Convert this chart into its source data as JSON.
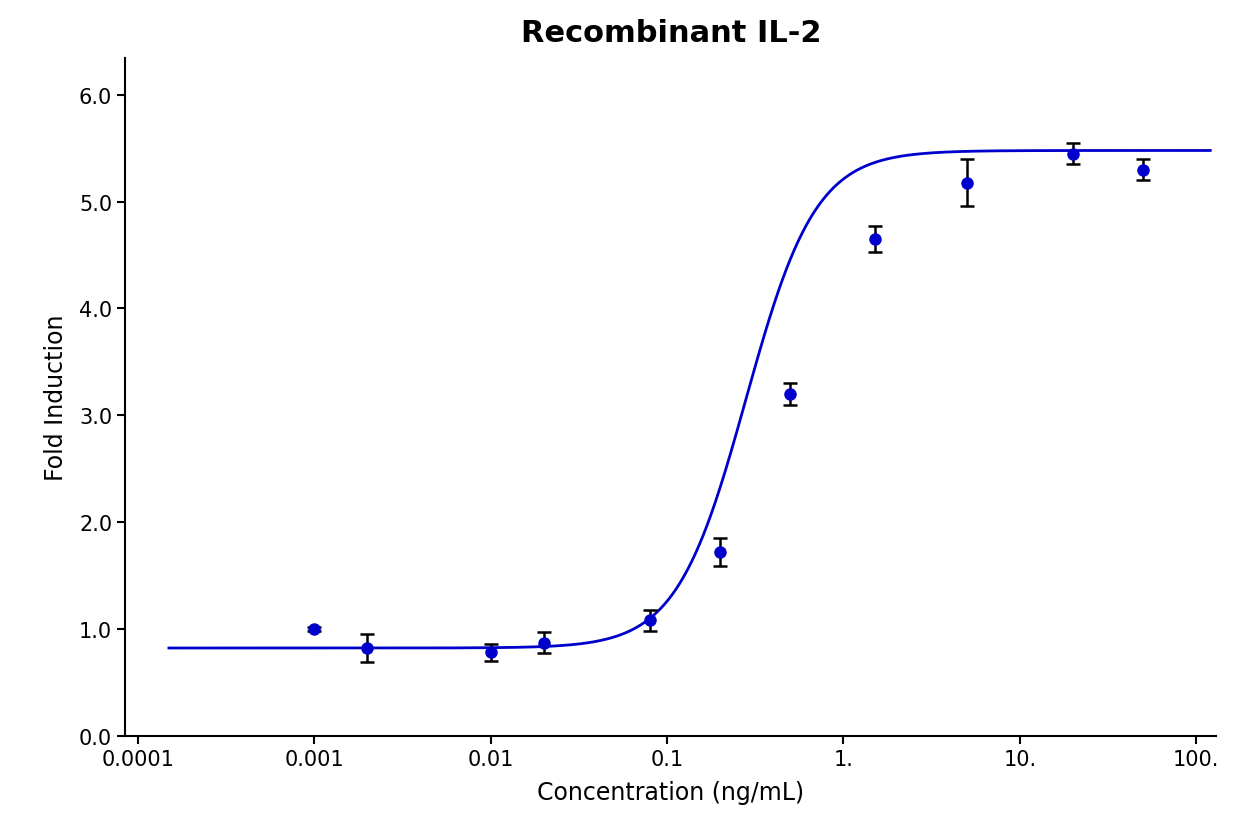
{
  "title": "Recombinant IL-2",
  "xlabel": "Concentration (ng/mL)",
  "ylabel": "Fold Induction",
  "x_data": [
    0.001,
    0.002,
    0.01,
    0.02,
    0.08,
    0.2,
    0.5,
    1.5,
    5.0,
    20.0,
    50.0
  ],
  "y_data": [
    1.0,
    0.82,
    0.78,
    0.87,
    1.08,
    1.72,
    3.2,
    4.65,
    5.18,
    5.45,
    5.3
  ],
  "y_err": [
    0.02,
    0.13,
    0.08,
    0.1,
    0.1,
    0.13,
    0.1,
    0.12,
    0.22,
    0.1,
    0.1
  ],
  "line_color": "#0000CD",
  "marker_color": "#0000CD",
  "error_color": "#000000",
  "xlim_left": 8.5e-05,
  "xlim_right": 130.0,
  "ylim_bottom": 0.0,
  "ylim_top": 6.35,
  "yticks": [
    0.0,
    1.0,
    2.0,
    3.0,
    4.0,
    5.0,
    6.0
  ],
  "ytick_labels": [
    "0.0",
    "1.0",
    "2.0",
    "3.0",
    "4.0",
    "5.0",
    "6.0"
  ],
  "xtick_positions": [
    0.0001,
    0.001,
    0.01,
    0.1,
    1.0,
    10.0,
    100.0
  ],
  "xtick_labels": [
    "0.0001",
    "0.001",
    "0.01",
    "0.1",
    "1.",
    "10.",
    "100."
  ],
  "title_fontsize": 22,
  "axis_label_fontsize": 17,
  "tick_fontsize": 15,
  "background_color": "#ffffff",
  "ec50_init": 0.28,
  "hill_init": 2.2,
  "bottom_init": 0.82,
  "top_init": 5.48
}
